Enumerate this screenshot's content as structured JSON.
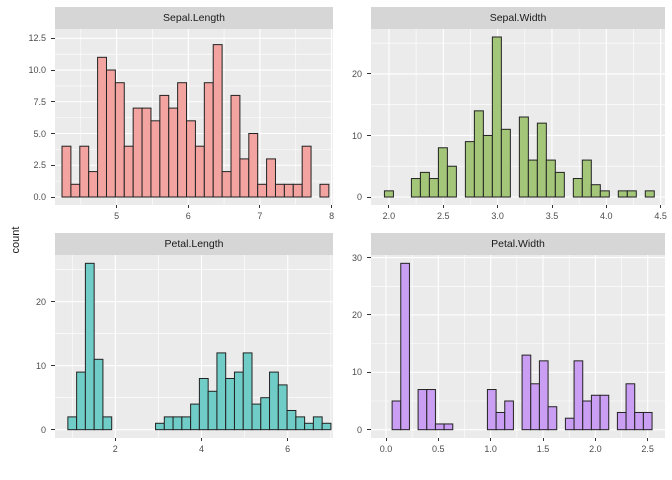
{
  "figure": {
    "y_axis_title": "count",
    "background": "#FFFFFF",
    "panel_background": "#EBEBEB",
    "strip_background": "#D6D6D6",
    "grid_color": "#FFFFFF",
    "tick_text_color": "#4D4D4D",
    "strip_text_color": "#1A1A1A",
    "bar_stroke": "#222222"
  },
  "chart_data": [
    {
      "type": "bar",
      "title": "Sepal.Length",
      "fill": "#F3A4A0",
      "bin_start": 4.2379,
      "binwidth": 0.12414,
      "values": [
        4,
        1,
        4,
        2,
        11,
        10,
        9,
        4,
        7,
        7,
        6,
        8,
        7,
        9,
        6,
        4,
        9,
        12,
        2,
        8,
        3,
        5,
        1,
        3,
        1,
        1,
        1,
        4,
        0,
        1
      ],
      "x_ticks": {
        "values": [
          5,
          6,
          7,
          8
        ],
        "labels": [
          "5",
          "6",
          "7",
          "8"
        ]
      },
      "y_ticks": {
        "values": [
          0,
          2.5,
          5,
          7.5,
          10,
          12.5
        ],
        "labels": [
          "0.0",
          "2.5",
          "5.0",
          "7.5",
          "10.0",
          "12.5"
        ]
      },
      "xlim": [
        4.14,
        8.02
      ],
      "ylim": [
        -0.63,
        13.23
      ],
      "grid": true,
      "legend": "none"
    },
    {
      "type": "bar",
      "title": "Sepal.Width",
      "fill": "#A4C679",
      "bin_start": 1.9586,
      "binwidth": 0.08276,
      "values": [
        1,
        0,
        0,
        3,
        4,
        3,
        8,
        5,
        0,
        9,
        14,
        10,
        26,
        11,
        0,
        13,
        6,
        12,
        6,
        4,
        0,
        3,
        6,
        2,
        1,
        0,
        1,
        1,
        0,
        1
      ],
      "x_ticks": {
        "values": [
          2.0,
          2.5,
          3.0,
          3.5,
          4.0,
          4.5
        ],
        "labels": [
          "2.0",
          "2.5",
          "3.0",
          "3.5",
          "4.0",
          "4.5"
        ]
      },
      "y_ticks": {
        "values": [
          0,
          10,
          20
        ],
        "labels": [
          "0",
          "10",
          "20"
        ]
      },
      "xlim": [
        1.835,
        4.54
      ],
      "ylim": [
        -1.3,
        27.3
      ],
      "grid": true,
      "legend": "none"
    },
    {
      "type": "bar",
      "title": "Petal.Length",
      "fill": "#6FCCC7",
      "bin_start": 0.8983,
      "binwidth": 0.20345,
      "values": [
        2,
        9,
        26,
        11,
        2,
        0,
        0,
        0,
        0,
        0,
        1,
        2,
        2,
        2,
        4,
        8,
        6,
        12,
        8,
        9,
        12,
        4,
        5,
        9,
        7,
        3,
        2,
        1,
        2,
        1
      ],
      "x_ticks": {
        "values": [
          2,
          4,
          6
        ],
        "labels": [
          "2",
          "4",
          "6"
        ]
      },
      "y_ticks": {
        "values": [
          0,
          10,
          20
        ],
        "labels": [
          "0",
          "10",
          "20"
        ]
      },
      "xlim": [
        0.6,
        7.05
      ],
      "ylim": [
        -1.3,
        27.3
      ],
      "grid": true,
      "legend": "none"
    },
    {
      "type": "bar",
      "title": "Petal.Width",
      "fill": "#CA9EF3",
      "bin_start": 0.0586,
      "binwidth": 0.08276,
      "values": [
        5,
        29,
        0,
        7,
        7,
        1,
        1,
        0,
        0,
        0,
        0,
        7,
        3,
        5,
        0,
        13,
        8,
        12,
        4,
        0,
        2,
        12,
        5,
        6,
        6,
        0,
        3,
        8,
        3,
        3
      ],
      "x_ticks": {
        "values": [
          0.0,
          0.5,
          1.0,
          1.5,
          2.0,
          2.5
        ],
        "labels": [
          "0.0",
          "0.5",
          "1.0",
          "1.5",
          "2.0",
          "2.5"
        ]
      },
      "y_ticks": {
        "values": [
          0,
          10,
          20,
          30
        ],
        "labels": [
          "0",
          "10",
          "20",
          "30"
        ]
      },
      "xlim": [
        -0.143,
        2.665
      ],
      "ylim": [
        -1.45,
        30.45
      ],
      "grid": true,
      "legend": "none"
    }
  ]
}
